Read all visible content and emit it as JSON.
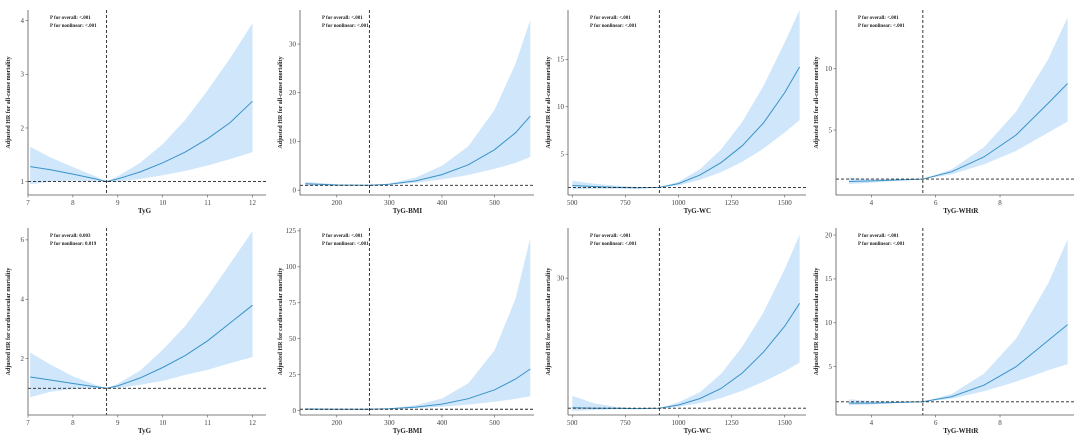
{
  "chart_data": [
    {
      "type": "line",
      "xlabel": "TyG",
      "ylabel": "Adjusted HR for all-cause mortality",
      "annotations": [
        "P for overall: <.001",
        "P for nonlinear: <.001"
      ],
      "xlim": [
        7,
        12.3
      ],
      "ylim": [
        0.75,
        4.2
      ],
      "xticks": [
        7,
        8,
        9,
        10,
        11,
        12
      ],
      "yticks": [
        1,
        2,
        3,
        4
      ],
      "ref_x": 8.75,
      "ref_y": 1,
      "x": [
        7.05,
        7.5,
        8,
        8.5,
        8.75,
        9,
        9.5,
        10,
        10.5,
        11,
        11.5,
        12
      ],
      "series": [
        {
          "values": [
            1.28,
            1.22,
            1.14,
            1.05,
            1.0,
            1.05,
            1.18,
            1.35,
            1.55,
            1.8,
            2.1,
            2.5
          ],
          "lower": [
            0.95,
            1.0,
            1.02,
            1.0,
            1.0,
            1.0,
            1.05,
            1.12,
            1.2,
            1.3,
            1.42,
            1.55
          ],
          "upper": [
            1.65,
            1.45,
            1.27,
            1.1,
            1.0,
            1.1,
            1.35,
            1.7,
            2.15,
            2.7,
            3.3,
            3.95
          ]
        }
      ]
    },
    {
      "type": "line",
      "xlabel": "TyG-BMI",
      "ylabel": "Adjusted HR for all-cause mortality",
      "annotations": [
        "P for overall: <.001",
        "P for nonlinear: <.001"
      ],
      "xlim": [
        130,
        575
      ],
      "ylim": [
        -1,
        37
      ],
      "xticks": [
        200,
        300,
        400,
        500
      ],
      "yticks": [
        0,
        10,
        20,
        30
      ],
      "ref_x": 262,
      "ref_y": 1,
      "x": [
        140,
        200,
        262,
        300,
        350,
        400,
        450,
        500,
        540,
        568
      ],
      "series": [
        {
          "values": [
            1.3,
            1.05,
            1.0,
            1.2,
            1.9,
            3.2,
            5.2,
            8.3,
            11.8,
            15.2
          ],
          "lower": [
            0.9,
            0.9,
            1.0,
            1.1,
            1.5,
            2.2,
            3.1,
            4.4,
            5.6,
            6.8
          ],
          "upper": [
            1.7,
            1.2,
            1.0,
            1.35,
            2.6,
            5.0,
            9.0,
            16.5,
            26.0,
            35.0
          ]
        }
      ]
    },
    {
      "type": "line",
      "xlabel": "TyG-WC",
      "ylabel": "Adjusted HR for all-cause mortality",
      "annotations": [
        "P for overall: <.001",
        "P for nonlinear: <.001"
      ],
      "xlim": [
        480,
        1600
      ],
      "ylim": [
        0.7,
        20.2
      ],
      "xticks": [
        500,
        750,
        1000,
        1250,
        1500
      ],
      "yticks": [
        5,
        10,
        15
      ],
      "ref_x": 910,
      "ref_y": 1.5,
      "x": [
        500,
        600,
        700,
        800,
        910,
        1000,
        1100,
        1200,
        1300,
        1400,
        1500,
        1570
      ],
      "series": [
        {
          "values": [
            1.7,
            1.6,
            1.5,
            1.45,
            1.5,
            1.9,
            2.8,
            4.1,
            5.9,
            8.3,
            11.5,
            14.2
          ],
          "lower": [
            1.3,
            1.35,
            1.35,
            1.4,
            1.5,
            1.7,
            2.3,
            3.1,
            4.2,
            5.6,
            7.3,
            8.6
          ],
          "upper": [
            2.2,
            1.9,
            1.7,
            1.55,
            1.5,
            2.1,
            3.4,
            5.5,
            8.4,
            12.2,
            16.8,
            20.2
          ]
        }
      ]
    },
    {
      "type": "line",
      "xlabel": "TyG-WHtR",
      "ylabel": "Adjusted HR for all-cause mortality",
      "annotations": [
        "P for overall: <.001",
        "P for nonlinear: <.001"
      ],
      "xlim": [
        2.9,
        10.3
      ],
      "ylim": [
        -0.3,
        14.8
      ],
      "xticks": [
        4,
        6,
        8
      ],
      "yticks": [
        5,
        10
      ],
      "ref_x": 5.6,
      "ref_y": 1,
      "x": [
        3.3,
        4,
        5,
        5.6,
        6.5,
        7.5,
        8.5,
        9.5,
        10.1
      ],
      "series": [
        {
          "values": [
            0.8,
            0.85,
            0.95,
            1.0,
            1.6,
            2.8,
            4.6,
            7.2,
            8.8
          ],
          "lower": [
            0.6,
            0.7,
            0.9,
            1.0,
            1.4,
            2.2,
            3.3,
            4.8,
            5.7
          ],
          "upper": [
            1.1,
            1.0,
            1.0,
            1.0,
            1.8,
            3.6,
            6.5,
            10.8,
            14.2
          ]
        }
      ]
    },
    {
      "type": "line",
      "xlabel": "TyG",
      "ylabel": "Adjusted HR for cardiovascular mortality",
      "annotations": [
        "P for overall: 0.003",
        "P for nonlinear: 0.019"
      ],
      "xlim": [
        7,
        12.3
      ],
      "ylim": [
        0.1,
        6.4
      ],
      "xticks": [
        7,
        8,
        9,
        10,
        11,
        12
      ],
      "yticks": [
        2,
        4,
        6
      ],
      "ref_x": 8.75,
      "ref_y": 1,
      "x": [
        7.05,
        7.5,
        8,
        8.5,
        8.75,
        9,
        9.5,
        10,
        10.5,
        11,
        11.5,
        12
      ],
      "series": [
        {
          "values": [
            1.38,
            1.28,
            1.16,
            1.05,
            1.0,
            1.08,
            1.35,
            1.7,
            2.1,
            2.6,
            3.2,
            3.8
          ],
          "lower": [
            0.7,
            0.88,
            0.98,
            1.0,
            1.0,
            1.0,
            1.12,
            1.25,
            1.45,
            1.62,
            1.85,
            2.05
          ],
          "upper": [
            2.2,
            1.8,
            1.4,
            1.12,
            1.0,
            1.15,
            1.6,
            2.3,
            3.1,
            4.1,
            5.2,
            6.3
          ]
        }
      ]
    },
    {
      "type": "line",
      "xlabel": "TyG-BMI",
      "ylabel": "Adjusted HR for cardiovascular mortality",
      "annotations": [
        "P for overall: <.001",
        "P for nonlinear: <.001"
      ],
      "xlim": [
        130,
        575
      ],
      "ylim": [
        -3,
        127
      ],
      "xticks": [
        200,
        300,
        400,
        500
      ],
      "yticks": [
        0,
        25,
        50,
        75,
        100,
        125
      ],
      "ref_x": 262,
      "ref_y": 1,
      "x": [
        140,
        200,
        262,
        300,
        350,
        400,
        450,
        500,
        540,
        568
      ],
      "series": [
        {
          "values": [
            1.1,
            1.0,
            1.0,
            1.4,
            2.5,
            4.6,
            8.3,
            14.5,
            22.0,
            29.0
          ],
          "lower": [
            0.6,
            0.8,
            1.0,
            1.2,
            1.8,
            2.8,
            4.2,
            6.2,
            8.2,
            10.0
          ],
          "upper": [
            1.8,
            1.3,
            1.0,
            1.7,
            3.8,
            8.5,
            19.0,
            42.0,
            78.0,
            120.0
          ]
        }
      ]
    },
    {
      "type": "line",
      "xlabel": "TyG-WC",
      "ylabel": "Adjusted HR for cardiovascular mortality",
      "annotations": [
        "P for overall: <.001",
        "P for nonlinear: <.001"
      ],
      "xlim": [
        480,
        1600
      ],
      "ylim": [
        0,
        41
      ],
      "xticks": [
        500,
        750,
        1000,
        1250,
        1500
      ],
      "yticks": [
        30
      ],
      "ref_x": 910,
      "ref_y": 1.5,
      "x": [
        500,
        600,
        700,
        800,
        910,
        1000,
        1100,
        1200,
        1300,
        1400,
        1500,
        1570
      ],
      "series": [
        {
          "values": [
            1.6,
            1.5,
            1.45,
            1.4,
            1.5,
            2.2,
            3.6,
            5.8,
            9.2,
            13.8,
            19.5,
            24.5
          ],
          "lower": [
            0.9,
            1.1,
            1.25,
            1.35,
            1.5,
            1.8,
            2.6,
            3.7,
            5.3,
            7.3,
            9.6,
            11.5
          ],
          "upper": [
            4.2,
            2.6,
            1.8,
            1.5,
            1.5,
            2.8,
            5.0,
            9.0,
            15.0,
            22.5,
            32.0,
            39.5
          ]
        }
      ]
    },
    {
      "type": "line",
      "xlabel": "TyG-WHtR",
      "ylabel": "Adjusted HR for cardiovascular mortality",
      "annotations": [
        "P for overall: <.001",
        "P for nonlinear: <.001"
      ],
      "xlim": [
        2.9,
        10.3
      ],
      "ylim": [
        -0.5,
        20.8
      ],
      "xticks": [
        4,
        6,
        8
      ],
      "yticks": [
        5,
        10,
        15,
        20
      ],
      "ref_x": 5.6,
      "ref_y": 1,
      "x": [
        3.3,
        4,
        5,
        5.6,
        6.5,
        7.5,
        8.5,
        9.5,
        10.1
      ],
      "series": [
        {
          "values": [
            0.85,
            0.85,
            0.95,
            1.0,
            1.6,
            2.9,
            5.0,
            8.0,
            9.8
          ],
          "lower": [
            0.6,
            0.7,
            0.9,
            1.0,
            1.35,
            2.2,
            3.3,
            4.6,
            5.3
          ],
          "upper": [
            1.3,
            1.1,
            1.0,
            1.0,
            1.9,
            4.2,
            8.2,
            14.5,
            19.5
          ]
        }
      ]
    }
  ]
}
